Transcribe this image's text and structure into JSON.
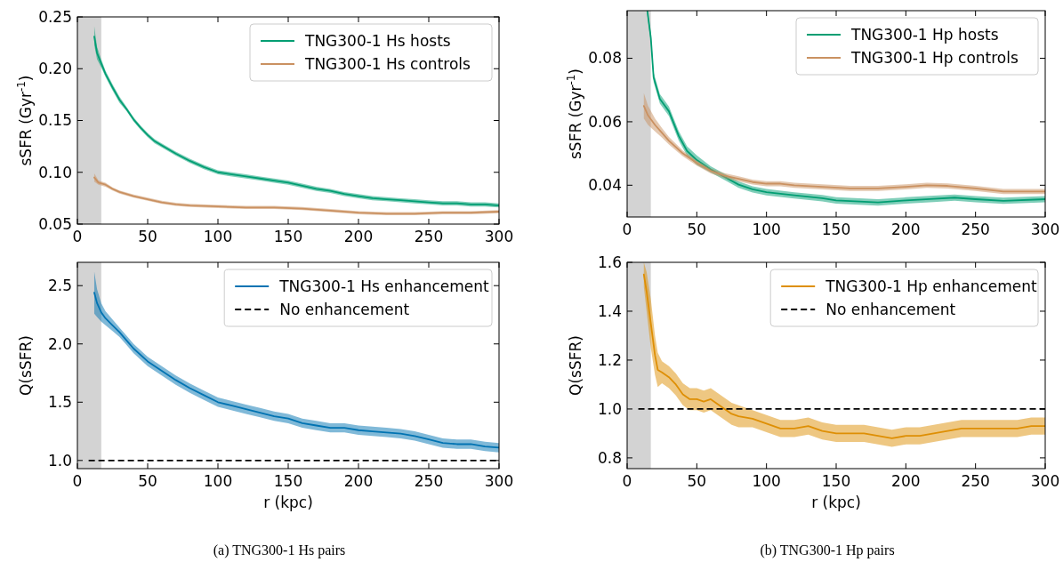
{
  "chart_data": [
    {
      "type": "line",
      "ylabel": "sSFR (Gyr$^{-1}$)",
      "xlim": [
        0,
        300
      ],
      "xticks": [
        0,
        50,
        100,
        150,
        200,
        250,
        300
      ],
      "ylim": [
        0.05,
        0.25
      ],
      "yticks": [
        {
          "value": 0.05,
          "label": "0.05"
        },
        {
          "value": 0.1,
          "label": "0.10"
        },
        {
          "value": 0.15,
          "label": "0.15"
        },
        {
          "value": 0.2,
          "label": "0.20"
        },
        {
          "value": 0.25,
          "label": "0.25"
        }
      ],
      "grid": false,
      "legend": "top right",
      "line_style": "solid",
      "marker": "none",
      "bands": [
        {
          "axis": "x",
          "from": 0,
          "to": 17,
          "color": "#d3d3d3"
        }
      ],
      "series": [
        {
          "name": "TNG300-1 Hs hosts",
          "color": "#029e73",
          "x": [
            12,
            14,
            17,
            20,
            25,
            30,
            35,
            40,
            45,
            50,
            55,
            60,
            70,
            80,
            90,
            100,
            110,
            120,
            130,
            140,
            150,
            160,
            170,
            180,
            190,
            200,
            210,
            220,
            230,
            240,
            250,
            260,
            270,
            280,
            290,
            300
          ],
          "values": [
            0.231,
            0.215,
            0.205,
            0.195,
            0.182,
            0.17,
            0.161,
            0.151,
            0.143,
            0.136,
            0.13,
            0.126,
            0.118,
            0.111,
            0.105,
            0.1,
            0.098,
            0.096,
            0.094,
            0.092,
            0.09,
            0.087,
            0.084,
            0.082,
            0.079,
            0.077,
            0.075,
            0.074,
            0.073,
            0.072,
            0.071,
            0.07,
            0.07,
            0.069,
            0.069,
            0.068
          ],
          "lower": [
            0.223,
            0.209,
            0.201,
            0.192,
            0.179,
            0.167,
            0.159,
            0.149,
            0.141,
            0.134,
            0.128,
            0.124,
            0.116,
            0.109,
            0.103,
            0.098,
            0.096,
            0.094,
            0.092,
            0.09,
            0.088,
            0.085,
            0.082,
            0.08,
            0.077,
            0.075,
            0.073,
            0.072,
            0.071,
            0.07,
            0.069,
            0.068,
            0.068,
            0.067,
            0.067,
            0.066
          ],
          "upper": [
            0.241,
            0.221,
            0.209,
            0.198,
            0.185,
            0.173,
            0.163,
            0.153,
            0.145,
            0.138,
            0.132,
            0.128,
            0.12,
            0.113,
            0.107,
            0.102,
            0.1,
            0.098,
            0.096,
            0.094,
            0.092,
            0.089,
            0.086,
            0.084,
            0.081,
            0.079,
            0.077,
            0.076,
            0.075,
            0.074,
            0.073,
            0.072,
            0.072,
            0.071,
            0.071,
            0.07
          ]
        },
        {
          "name": "TNG300-1 Hs controls",
          "color": "#ca9161",
          "x": [
            12,
            15,
            20,
            25,
            30,
            40,
            50,
            60,
            70,
            80,
            100,
            120,
            140,
            160,
            180,
            200,
            220,
            240,
            260,
            280,
            300
          ],
          "values": [
            0.095,
            0.09,
            0.088,
            0.084,
            0.081,
            0.077,
            0.074,
            0.071,
            0.069,
            0.068,
            0.067,
            0.066,
            0.066,
            0.065,
            0.063,
            0.061,
            0.06,
            0.06,
            0.061,
            0.061,
            0.062
          ],
          "lower": [
            0.091,
            0.088,
            0.086,
            0.0825,
            0.0795,
            0.0755,
            0.0725,
            0.0695,
            0.0675,
            0.0665,
            0.0655,
            0.0645,
            0.0645,
            0.0635,
            0.0615,
            0.0595,
            0.0585,
            0.0585,
            0.0595,
            0.0595,
            0.0605
          ],
          "upper": [
            0.099,
            0.092,
            0.09,
            0.0855,
            0.0825,
            0.0785,
            0.0755,
            0.0725,
            0.0705,
            0.0695,
            0.0685,
            0.0675,
            0.0675,
            0.0665,
            0.0645,
            0.0625,
            0.0615,
            0.0615,
            0.0625,
            0.0625,
            0.0635
          ]
        }
      ]
    },
    {
      "type": "line",
      "ylabel": "sSFR (Gyr$^{-1}$)",
      "xlim": [
        0,
        300
      ],
      "xticks": [
        0,
        50,
        100,
        150,
        200,
        250,
        300
      ],
      "ylim": [
        0.03,
        0.095
      ],
      "yticks": [
        0.04,
        0.06,
        0.08
      ],
      "grid": false,
      "legend": "top right",
      "line_style": "solid",
      "marker": "none",
      "bands": [
        {
          "axis": "x",
          "from": 0,
          "to": 17,
          "color": "#d3d3d3"
        }
      ],
      "series": [
        {
          "name": "TNG300-1 Hp hosts",
          "color": "#029e73",
          "x": [
            14.5,
            17,
            19,
            23.5,
            30,
            37,
            43,
            50,
            60,
            70,
            80,
            90,
            100,
            120,
            140,
            150,
            160,
            180,
            200,
            220,
            235,
            250,
            270,
            300
          ],
          "values": [
            0.095,
            0.0865,
            0.074,
            0.0672,
            0.0633,
            0.0556,
            0.0508,
            0.0479,
            0.045,
            0.0426,
            0.0402,
            0.0387,
            0.0378,
            0.0368,
            0.0359,
            0.0352,
            0.035,
            0.0346,
            0.0352,
            0.0357,
            0.0361,
            0.0356,
            0.0351,
            0.0356
          ],
          "lower": [
            0.0935,
            0.085,
            0.0725,
            0.0657,
            0.0618,
            0.0541,
            0.0493,
            0.0464,
            0.044,
            0.0416,
            0.0392,
            0.0377,
            0.0368,
            0.0358,
            0.0349,
            0.0342,
            0.034,
            0.0336,
            0.0342,
            0.0347,
            0.0351,
            0.0346,
            0.0341,
            0.0346
          ],
          "upper": [
            0.095,
            0.088,
            0.0755,
            0.0687,
            0.0648,
            0.0571,
            0.0523,
            0.0494,
            0.046,
            0.0436,
            0.0412,
            0.0397,
            0.0388,
            0.0378,
            0.0369,
            0.0362,
            0.036,
            0.0356,
            0.0362,
            0.0367,
            0.0371,
            0.0366,
            0.0361,
            0.0366
          ]
        },
        {
          "name": "TNG300-1 Hp controls",
          "color": "#ca9161",
          "x": [
            12,
            15,
            20,
            25,
            30,
            40,
            50,
            60,
            70,
            80,
            90,
            100,
            110,
            120,
            140,
            160,
            180,
            200,
            215,
            230,
            250,
            270,
            300
          ],
          "values": [
            0.065,
            0.062,
            0.059,
            0.0565,
            0.054,
            0.05,
            0.047,
            0.0445,
            0.043,
            0.042,
            0.041,
            0.0405,
            0.0405,
            0.04,
            0.0395,
            0.039,
            0.039,
            0.0395,
            0.04,
            0.0398,
            0.039,
            0.038,
            0.038
          ],
          "lower": [
            0.061,
            0.059,
            0.057,
            0.055,
            0.0528,
            0.0491,
            0.0462,
            0.0437,
            0.0422,
            0.0412,
            0.0402,
            0.0397,
            0.0397,
            0.0392,
            0.0387,
            0.0382,
            0.0382,
            0.0387,
            0.0392,
            0.039,
            0.0382,
            0.0372,
            0.0372
          ],
          "upper": [
            0.069,
            0.065,
            0.061,
            0.058,
            0.0552,
            0.0509,
            0.0478,
            0.0453,
            0.0438,
            0.0428,
            0.0418,
            0.0413,
            0.0413,
            0.0408,
            0.0403,
            0.0398,
            0.0398,
            0.0403,
            0.0408,
            0.0406,
            0.0398,
            0.0388,
            0.0388
          ]
        }
      ]
    },
    {
      "type": "line",
      "xlabel": "r (kpc)",
      "ylabel": "Q(sSFR)",
      "annotations": [
        "(a) TNG300-1 Hs pairs"
      ],
      "xlim": [
        0,
        300
      ],
      "xticks": [
        0,
        50,
        100,
        150,
        200,
        250,
        300
      ],
      "ylim": [
        0.93,
        2.7
      ],
      "yticks": [
        {
          "value": 1,
          "label": "1.0"
        },
        1.5,
        {
          "value": 2,
          "label": "2.0"
        },
        2.5
      ],
      "grid": false,
      "legend": "top right",
      "line_style": "solid",
      "marker": "none",
      "bands": [
        {
          "axis": "x",
          "from": 0,
          "to": 17,
          "color": "#d3d3d3"
        }
      ],
      "ref_lines": [
        {
          "axis": "y",
          "value": 1,
          "label": "No enhancement",
          "color": "#000000",
          "line_style": "dashed"
        }
      ],
      "series": [
        {
          "name": "TNG300-1 Hs enhancement",
          "color": "#0173b2",
          "x": [
            12,
            14,
            17,
            20,
            25,
            30,
            35,
            40,
            50,
            60,
            70,
            80,
            90,
            100,
            110,
            120,
            130,
            140,
            150,
            160,
            170,
            180,
            190,
            200,
            210,
            220,
            230,
            240,
            250,
            260,
            270,
            280,
            290,
            300
          ],
          "values": [
            2.44,
            2.35,
            2.27,
            2.22,
            2.16,
            2.1,
            2.03,
            1.96,
            1.85,
            1.77,
            1.69,
            1.62,
            1.56,
            1.5,
            1.47,
            1.44,
            1.41,
            1.38,
            1.36,
            1.32,
            1.3,
            1.28,
            1.28,
            1.26,
            1.25,
            1.24,
            1.23,
            1.21,
            1.18,
            1.15,
            1.14,
            1.14,
            1.12,
            1.11
          ],
          "lower": [
            2.26,
            2.23,
            2.19,
            2.16,
            2.11,
            2.06,
            1.99,
            1.92,
            1.81,
            1.73,
            1.65,
            1.58,
            1.52,
            1.46,
            1.43,
            1.4,
            1.37,
            1.34,
            1.32,
            1.28,
            1.26,
            1.24,
            1.24,
            1.22,
            1.21,
            1.2,
            1.19,
            1.17,
            1.14,
            1.11,
            1.1,
            1.1,
            1.08,
            1.07
          ],
          "upper": [
            2.62,
            2.47,
            2.35,
            2.28,
            2.21,
            2.14,
            2.07,
            2.0,
            1.89,
            1.81,
            1.73,
            1.66,
            1.6,
            1.54,
            1.51,
            1.48,
            1.45,
            1.42,
            1.4,
            1.36,
            1.34,
            1.32,
            1.32,
            1.3,
            1.29,
            1.28,
            1.27,
            1.25,
            1.22,
            1.19,
            1.18,
            1.18,
            1.16,
            1.15
          ]
        }
      ]
    },
    {
      "type": "line",
      "xlabel": "r (kpc)",
      "ylabel": "Q(sSFR)",
      "annotations": [
        "(b) TNG300-1 Hp pairs"
      ],
      "xlim": [
        0,
        300
      ],
      "xticks": [
        0,
        50,
        100,
        150,
        200,
        250,
        300
      ],
      "ylim": [
        0.756,
        1.6
      ],
      "yticks": [
        0.8,
        {
          "value": 1,
          "label": "1.0"
        },
        1.2,
        1.4,
        1.6
      ],
      "grid": false,
      "legend": "top right",
      "line_style": "solid",
      "marker": "none",
      "bands": [
        {
          "axis": "x",
          "from": 0,
          "to": 17,
          "color": "#d3d3d3"
        }
      ],
      "ref_lines": [
        {
          "axis": "y",
          "value": 1,
          "label": "No enhancement",
          "color": "#000000",
          "line_style": "dashed"
        }
      ],
      "series": [
        {
          "name": "TNG300-1 Hp enhancement",
          "color": "#de8f05",
          "x": [
            12,
            14,
            17,
            20,
            22,
            25,
            30,
            35,
            40,
            45,
            50,
            55,
            60,
            65,
            70,
            75,
            80,
            90,
            100,
            110,
            120,
            130,
            140,
            150,
            160,
            170,
            180,
            190,
            200,
            210,
            220,
            230,
            240,
            250,
            260,
            270,
            280,
            290,
            300
          ],
          "values": [
            1.55,
            1.48,
            1.35,
            1.22,
            1.16,
            1.15,
            1.13,
            1.1,
            1.06,
            1.04,
            1.04,
            1.03,
            1.04,
            1.02,
            1.0,
            0.98,
            0.97,
            0.96,
            0.94,
            0.92,
            0.92,
            0.93,
            0.91,
            0.9,
            0.9,
            0.9,
            0.89,
            0.88,
            0.89,
            0.89,
            0.9,
            0.91,
            0.92,
            0.92,
            0.92,
            0.92,
            0.92,
            0.93,
            0.93
          ],
          "lower": [
            1.5,
            1.4,
            1.25,
            1.14,
            1.09,
            1.105,
            1.085,
            1.055,
            1.015,
            0.995,
            0.995,
            0.985,
            0.995,
            0.975,
            0.955,
            0.935,
            0.925,
            0.925,
            0.905,
            0.885,
            0.885,
            0.895,
            0.875,
            0.865,
            0.865,
            0.865,
            0.855,
            0.845,
            0.855,
            0.855,
            0.865,
            0.875,
            0.885,
            0.885,
            0.885,
            0.885,
            0.885,
            0.895,
            0.895
          ],
          "upper": [
            1.6,
            1.56,
            1.45,
            1.3,
            1.23,
            1.195,
            1.175,
            1.145,
            1.105,
            1.085,
            1.085,
            1.075,
            1.085,
            1.065,
            1.045,
            1.025,
            1.015,
            0.995,
            0.975,
            0.955,
            0.955,
            0.965,
            0.945,
            0.935,
            0.935,
            0.935,
            0.925,
            0.915,
            0.925,
            0.925,
            0.935,
            0.945,
            0.955,
            0.955,
            0.955,
            0.955,
            0.955,
            0.965,
            0.965
          ]
        }
      ]
    }
  ]
}
